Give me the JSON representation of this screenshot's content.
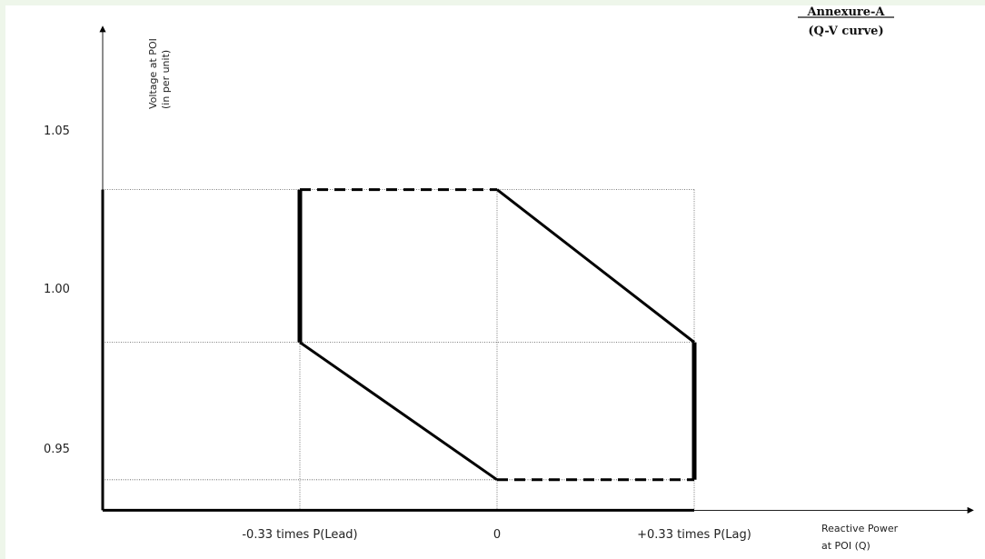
{
  "annexure": {
    "title": "Annexure-A",
    "subtitle": "(Q-V curve)"
  },
  "chart_data": {
    "type": "line",
    "ylabel": [
      "Voltage at POI",
      "(in per unit)"
    ],
    "xlabel": [
      "Reactive Power",
      "at POI (Q)"
    ],
    "x_ticks": [
      {
        "value": -0.33,
        "label": "-0.33 times P(Lead)"
      },
      {
        "value": 0,
        "label": "0"
      },
      {
        "value": 0.33,
        "label": "+0.33 times P(Lag)"
      }
    ],
    "y_ticks": [
      {
        "value": 0.95,
        "label": "0.95"
      },
      {
        "value": 1.0,
        "label": "1.00"
      },
      {
        "value": 1.05,
        "label": "1.05"
      }
    ],
    "xlim": [
      -0.66,
      0.33
    ],
    "ylim": [
      0.935,
      1.05
    ],
    "grid": true,
    "series": [
      {
        "style": "solid-thick",
        "x": [
          -0.33,
          -0.33
        ],
        "y": [
          1.04,
          0.99
        ]
      },
      {
        "style": "dashed",
        "x": [
          -0.33,
          0
        ],
        "y": [
          1.04,
          1.04
        ]
      },
      {
        "style": "solid",
        "x": [
          0,
          0.33
        ],
        "y": [
          1.04,
          0.99
        ]
      },
      {
        "style": "solid-thick",
        "x": [
          0.33,
          0.33
        ],
        "y": [
          0.99,
          0.945
        ]
      },
      {
        "style": "dashed",
        "x": [
          0,
          0.33
        ],
        "y": [
          0.945,
          0.945
        ]
      },
      {
        "style": "solid",
        "x": [
          -0.33,
          0
        ],
        "y": [
          0.99,
          0.945
        ]
      }
    ],
    "region_box": {
      "x": [
        -0.66,
        0.33
      ],
      "y": [
        0.935,
        1.04
      ]
    }
  }
}
